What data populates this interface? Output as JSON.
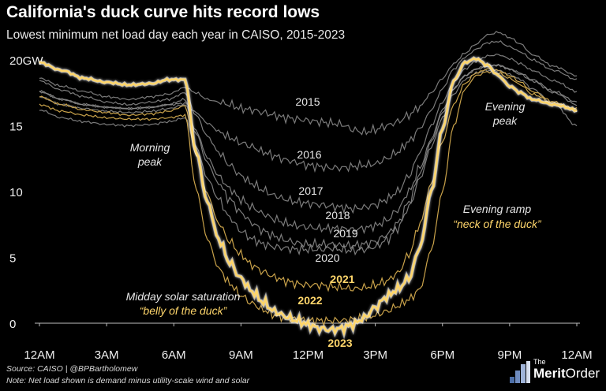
{
  "header": {
    "title": "California's duck curve hits record lows",
    "subtitle": "Lowest minimum net load day each year in CAISO, 2015-2023"
  },
  "footer": {
    "source": "Source: CAISO | @BPBartholomew",
    "note": "Note: Net load shown is demand minus utility-scale wind and solar"
  },
  "brand": {
    "the": "The",
    "merit": "Merit",
    "order": "Order"
  },
  "colors": {
    "background": "#000000",
    "grey_series": "#8a8a8a",
    "gold_series": "#c9a24a",
    "highlight": "#ffd66b",
    "highlight_glow": "#ffffff"
  },
  "chart_data": {
    "type": "line",
    "ylim": [
      0,
      20
    ],
    "xlim": [
      0,
      24
    ],
    "y_ticks": [
      0,
      5,
      10,
      15,
      20
    ],
    "y_tick_labels": [
      "0",
      "5",
      "10",
      "15",
      "20GW"
    ],
    "x_ticks": [
      0,
      3,
      6,
      9,
      12,
      15,
      18,
      21,
      24
    ],
    "x_tick_labels": [
      "12AM",
      "3AM",
      "6AM",
      "9AM",
      "12PM",
      "3PM",
      "6PM",
      "9PM",
      "12AM"
    ],
    "grid": false,
    "x": [
      0,
      1,
      2,
      3,
      4,
      5,
      5.75,
      6.5,
      7,
      7.5,
      8,
      8.5,
      9,
      9.5,
      10,
      10.5,
      11,
      11.5,
      12,
      12.5,
      13,
      13.5,
      14,
      14.5,
      15,
      15.5,
      16,
      16.5,
      17,
      17.5,
      18,
      18.5,
      19,
      19.5,
      20,
      20.5,
      21,
      21.5,
      22,
      23,
      24
    ],
    "series": [
      {
        "name": "2015",
        "color": "grey",
        "values": [
          18.6,
          18.0,
          17.6,
          17.2,
          17.0,
          17.2,
          17.4,
          17.9,
          17.5,
          17.0,
          16.8,
          16.6,
          16.3,
          16.2,
          16.0,
          15.8,
          15.6,
          15.5,
          15.4,
          15.3,
          15.2,
          15.1,
          14.7,
          14.5,
          14.7,
          15.0,
          15.3,
          15.8,
          16.5,
          17.5,
          18.6,
          19.7,
          20.5,
          21.2,
          21.9,
          22.1,
          21.7,
          21.2,
          20.4,
          19.5,
          18.8
        ]
      },
      {
        "name": "2016",
        "color": "grey",
        "values": [
          17.6,
          17.0,
          16.6,
          16.4,
          16.3,
          16.4,
          16.6,
          16.7,
          16.0,
          15.2,
          14.6,
          14.1,
          13.7,
          13.4,
          13.0,
          12.7,
          12.4,
          12.2,
          12.0,
          11.9,
          11.8,
          11.8,
          11.9,
          12.0,
          12.1,
          12.5,
          13.0,
          13.8,
          14.8,
          16.2,
          17.8,
          19.3,
          20.2,
          20.8,
          21.3,
          21.4,
          21.0,
          20.6,
          20.0,
          19.2,
          18.5
        ]
      },
      {
        "name": "2017",
        "color": "grey",
        "values": [
          18.4,
          17.7,
          17.2,
          16.8,
          16.6,
          16.8,
          17.0,
          17.5,
          15.8,
          14.2,
          13.0,
          12.0,
          11.2,
          10.6,
          10.1,
          9.7,
          9.4,
          9.2,
          9.1,
          9.0,
          8.9,
          8.8,
          8.7,
          8.8,
          9.0,
          9.4,
          10.0,
          11.2,
          13.0,
          15.0,
          16.8,
          18.3,
          19.3,
          19.9,
          20.3,
          20.4,
          20.1,
          19.7,
          19.2,
          18.4,
          17.6
        ]
      },
      {
        "name": "2018",
        "color": "grey",
        "values": [
          17.2,
          16.6,
          16.3,
          16.1,
          16.0,
          16.1,
          16.3,
          16.6,
          14.6,
          12.6,
          11.2,
          10.2,
          9.4,
          8.8,
          8.3,
          7.9,
          7.6,
          7.4,
          7.3,
          7.2,
          7.2,
          7.2,
          7.1,
          7.2,
          7.4,
          7.8,
          8.6,
          10.0,
          11.8,
          14.0,
          16.2,
          17.8,
          18.8,
          19.3,
          19.5,
          19.6,
          19.3,
          19.0,
          18.5,
          17.6,
          16.8
        ]
      },
      {
        "name": "2019",
        "color": "grey",
        "values": [
          17.6,
          17.0,
          16.6,
          16.4,
          16.3,
          16.4,
          16.6,
          17.0,
          14.4,
          12.2,
          10.6,
          9.4,
          8.4,
          7.6,
          7.0,
          6.6,
          6.3,
          6.1,
          6.0,
          6.0,
          6.0,
          5.9,
          5.9,
          6.0,
          6.2,
          6.7,
          7.6,
          9.2,
          11.4,
          13.8,
          16.0,
          17.8,
          18.8,
          19.3,
          19.6,
          19.6,
          19.3,
          18.9,
          18.4,
          17.5,
          16.6
        ]
      },
      {
        "name": "2020",
        "color": "grey",
        "values": [
          16.2,
          15.6,
          15.3,
          15.1,
          15.0,
          15.1,
          15.3,
          15.6,
          13.4,
          11.0,
          9.4,
          8.0,
          7.0,
          6.4,
          6.0,
          5.8,
          5.7,
          5.6,
          5.6,
          5.6,
          5.7,
          5.6,
          5.5,
          5.6,
          5.8,
          6.3,
          7.2,
          8.8,
          11.0,
          13.4,
          15.6,
          17.4,
          18.5,
          19.0,
          19.2,
          19.2,
          18.9,
          18.5,
          17.8,
          16.6,
          15.0
        ]
      },
      {
        "name": "2021",
        "color": "gold",
        "values": [
          17.2,
          16.6,
          16.2,
          16.0,
          15.8,
          15.9,
          16.1,
          16.5,
          12.8,
          9.8,
          7.6,
          6.2,
          5.2,
          4.4,
          3.9,
          3.5,
          3.2,
          3.0,
          2.9,
          2.9,
          2.8,
          2.7,
          2.6,
          2.7,
          2.9,
          3.2,
          3.8,
          5.2,
          7.6,
          10.6,
          13.8,
          16.6,
          18.2,
          19.0,
          19.3,
          19.2,
          18.8,
          18.3,
          17.6,
          16.8,
          16.1
        ]
      },
      {
        "name": "2022",
        "color": "gold",
        "values": [
          16.6,
          16.1,
          15.8,
          15.6,
          15.5,
          15.5,
          15.6,
          15.8,
          10.2,
          6.4,
          4.2,
          3.0,
          2.1,
          1.5,
          1.0,
          0.6,
          0.4,
          0.3,
          0.2,
          0.2,
          0.2,
          0.2,
          0.3,
          0.4,
          0.6,
          0.9,
          1.3,
          1.8,
          2.6,
          5.6,
          10.0,
          15.0,
          17.8,
          18.8,
          19.1,
          19.0,
          18.6,
          18.1,
          17.4,
          16.7,
          16.3
        ]
      },
      {
        "name": "2023",
        "color": "highlight",
        "values": [
          19.8,
          19.2,
          18.6,
          18.3,
          18.1,
          18.2,
          18.5,
          18.5,
          13.0,
          9.2,
          6.4,
          4.6,
          3.4,
          2.4,
          1.6,
          0.9,
          0.5,
          0.2,
          -0.1,
          -0.4,
          -0.5,
          -0.4,
          -0.1,
          0.4,
          1.2,
          2.0,
          2.6,
          3.4,
          5.8,
          10.0,
          14.8,
          18.4,
          19.8,
          20.1,
          19.6,
          18.8,
          18.0,
          17.5,
          17.0,
          16.6,
          16.2
        ]
      }
    ],
    "annotations": {
      "morning_peak": "Morning\npeak",
      "evening_peak": "Evening\npeak",
      "evening_ramp": "Evening ramp",
      "neck": "“neck of the duck”",
      "midday": "Midday solar saturation",
      "belly": "“belly of the duck”"
    }
  }
}
